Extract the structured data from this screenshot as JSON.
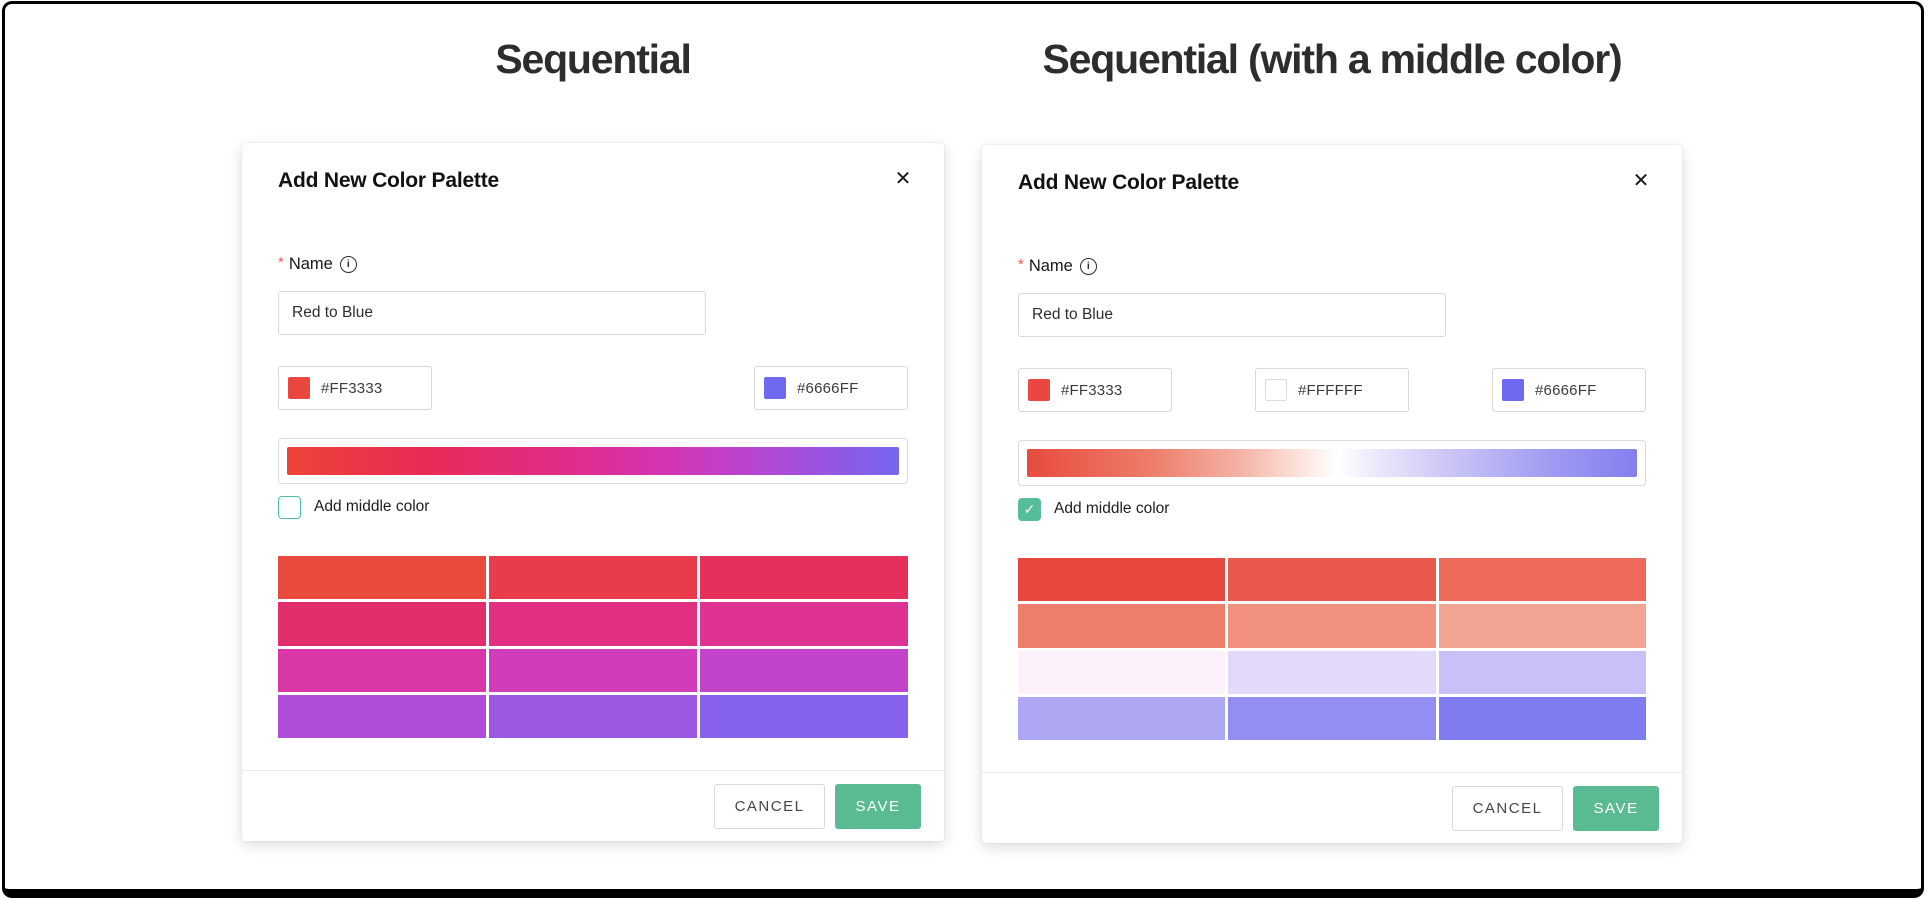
{
  "page": {
    "left_title": "Sequential",
    "right_title": "Sequential (with a middle color)"
  },
  "shared": {
    "dialog_title": "Add New Color Palette",
    "close_glyph": "✕",
    "required_marker": "*",
    "name_label": "Name",
    "info_glyph": "i",
    "name_value": "Red to Blue",
    "middle_checkbox_label": "Add middle color",
    "check_glyph": "✓",
    "cancel_label": "CANCEL",
    "save_label": "SAVE"
  },
  "colors": {
    "accent_green": "#5abb93",
    "checkbox_green": "#4ebe9d",
    "required_red": "#f0565c"
  },
  "left": {
    "start_hex": "#FF3333",
    "end_hex": "#6666FF",
    "start_swatch": "#E94740",
    "end_swatch": "#6F68F0",
    "middle_color_checked": false,
    "gradient_css": "linear-gradient(90deg,#EE4338 0%,#E92B55 22%,#E02C88 45%,#D434B4 62%,#AF4BD9 80%,#7566EE 100%)",
    "palette": [
      "#E84B3D",
      "#E93B4C",
      "#E6305C",
      "#E32E6D",
      "#E12F81",
      "#DE3294",
      "#D936A6",
      "#D03CB9",
      "#C244CB",
      "#AF4DD9",
      "#9C57E3",
      "#8561EC"
    ]
  },
  "right": {
    "start_hex": "#FF3333",
    "middle_hex": "#FFFFFF",
    "end_hex": "#6666FF",
    "start_swatch": "#E94740",
    "middle_swatch": "#FFFFFF",
    "end_swatch": "#6F68F0",
    "middle_color_checked": true,
    "gradient_css": "linear-gradient(90deg,#E84A3F 0%,#ED7C69 20%,#F5B3A5 35%,#FDE9E4 46%,#FFFFFF 51%,#EFECFC 56%,#CEC9F7 68%,#A29DF2 85%,#827FEF 100%)",
    "palette": [
      "#E8473E",
      "#EA584D",
      "#ED6A5B",
      "#EE7D6B",
      "#F0907E",
      "#F2A492",
      "#FCF0FA",
      "#E3DAF9",
      "#C8C0F6",
      "#ADA7F4",
      "#928EF2",
      "#7F7CF0"
    ]
  }
}
